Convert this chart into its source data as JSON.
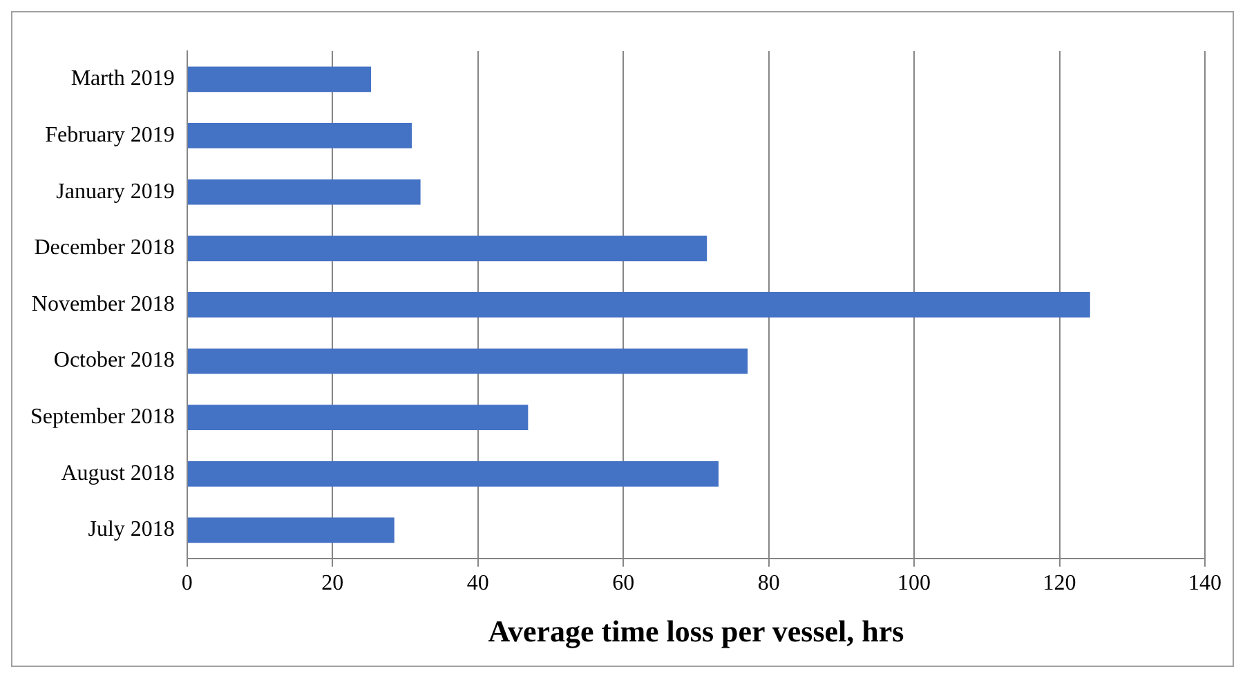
{
  "chart_data": {
    "type": "bar",
    "orientation": "horizontal",
    "xlabel": "Average time loss per vessel, hrs",
    "categories": [
      "Marth 2019",
      "February 2019",
      "January 2019",
      "December 2018",
      "November 2018",
      "October 2018",
      "September 2018",
      "August 2018",
      "July 2018"
    ],
    "values": [
      25.3,
      30.9,
      32.1,
      71.5,
      124.2,
      77.1,
      46.9,
      73.1,
      28.5
    ],
    "color": "#4472c4",
    "xlim": [
      0,
      140
    ],
    "xticks": [
      0,
      20,
      40,
      60,
      80,
      100,
      120,
      140
    ],
    "grid": "x",
    "legend": false
  }
}
